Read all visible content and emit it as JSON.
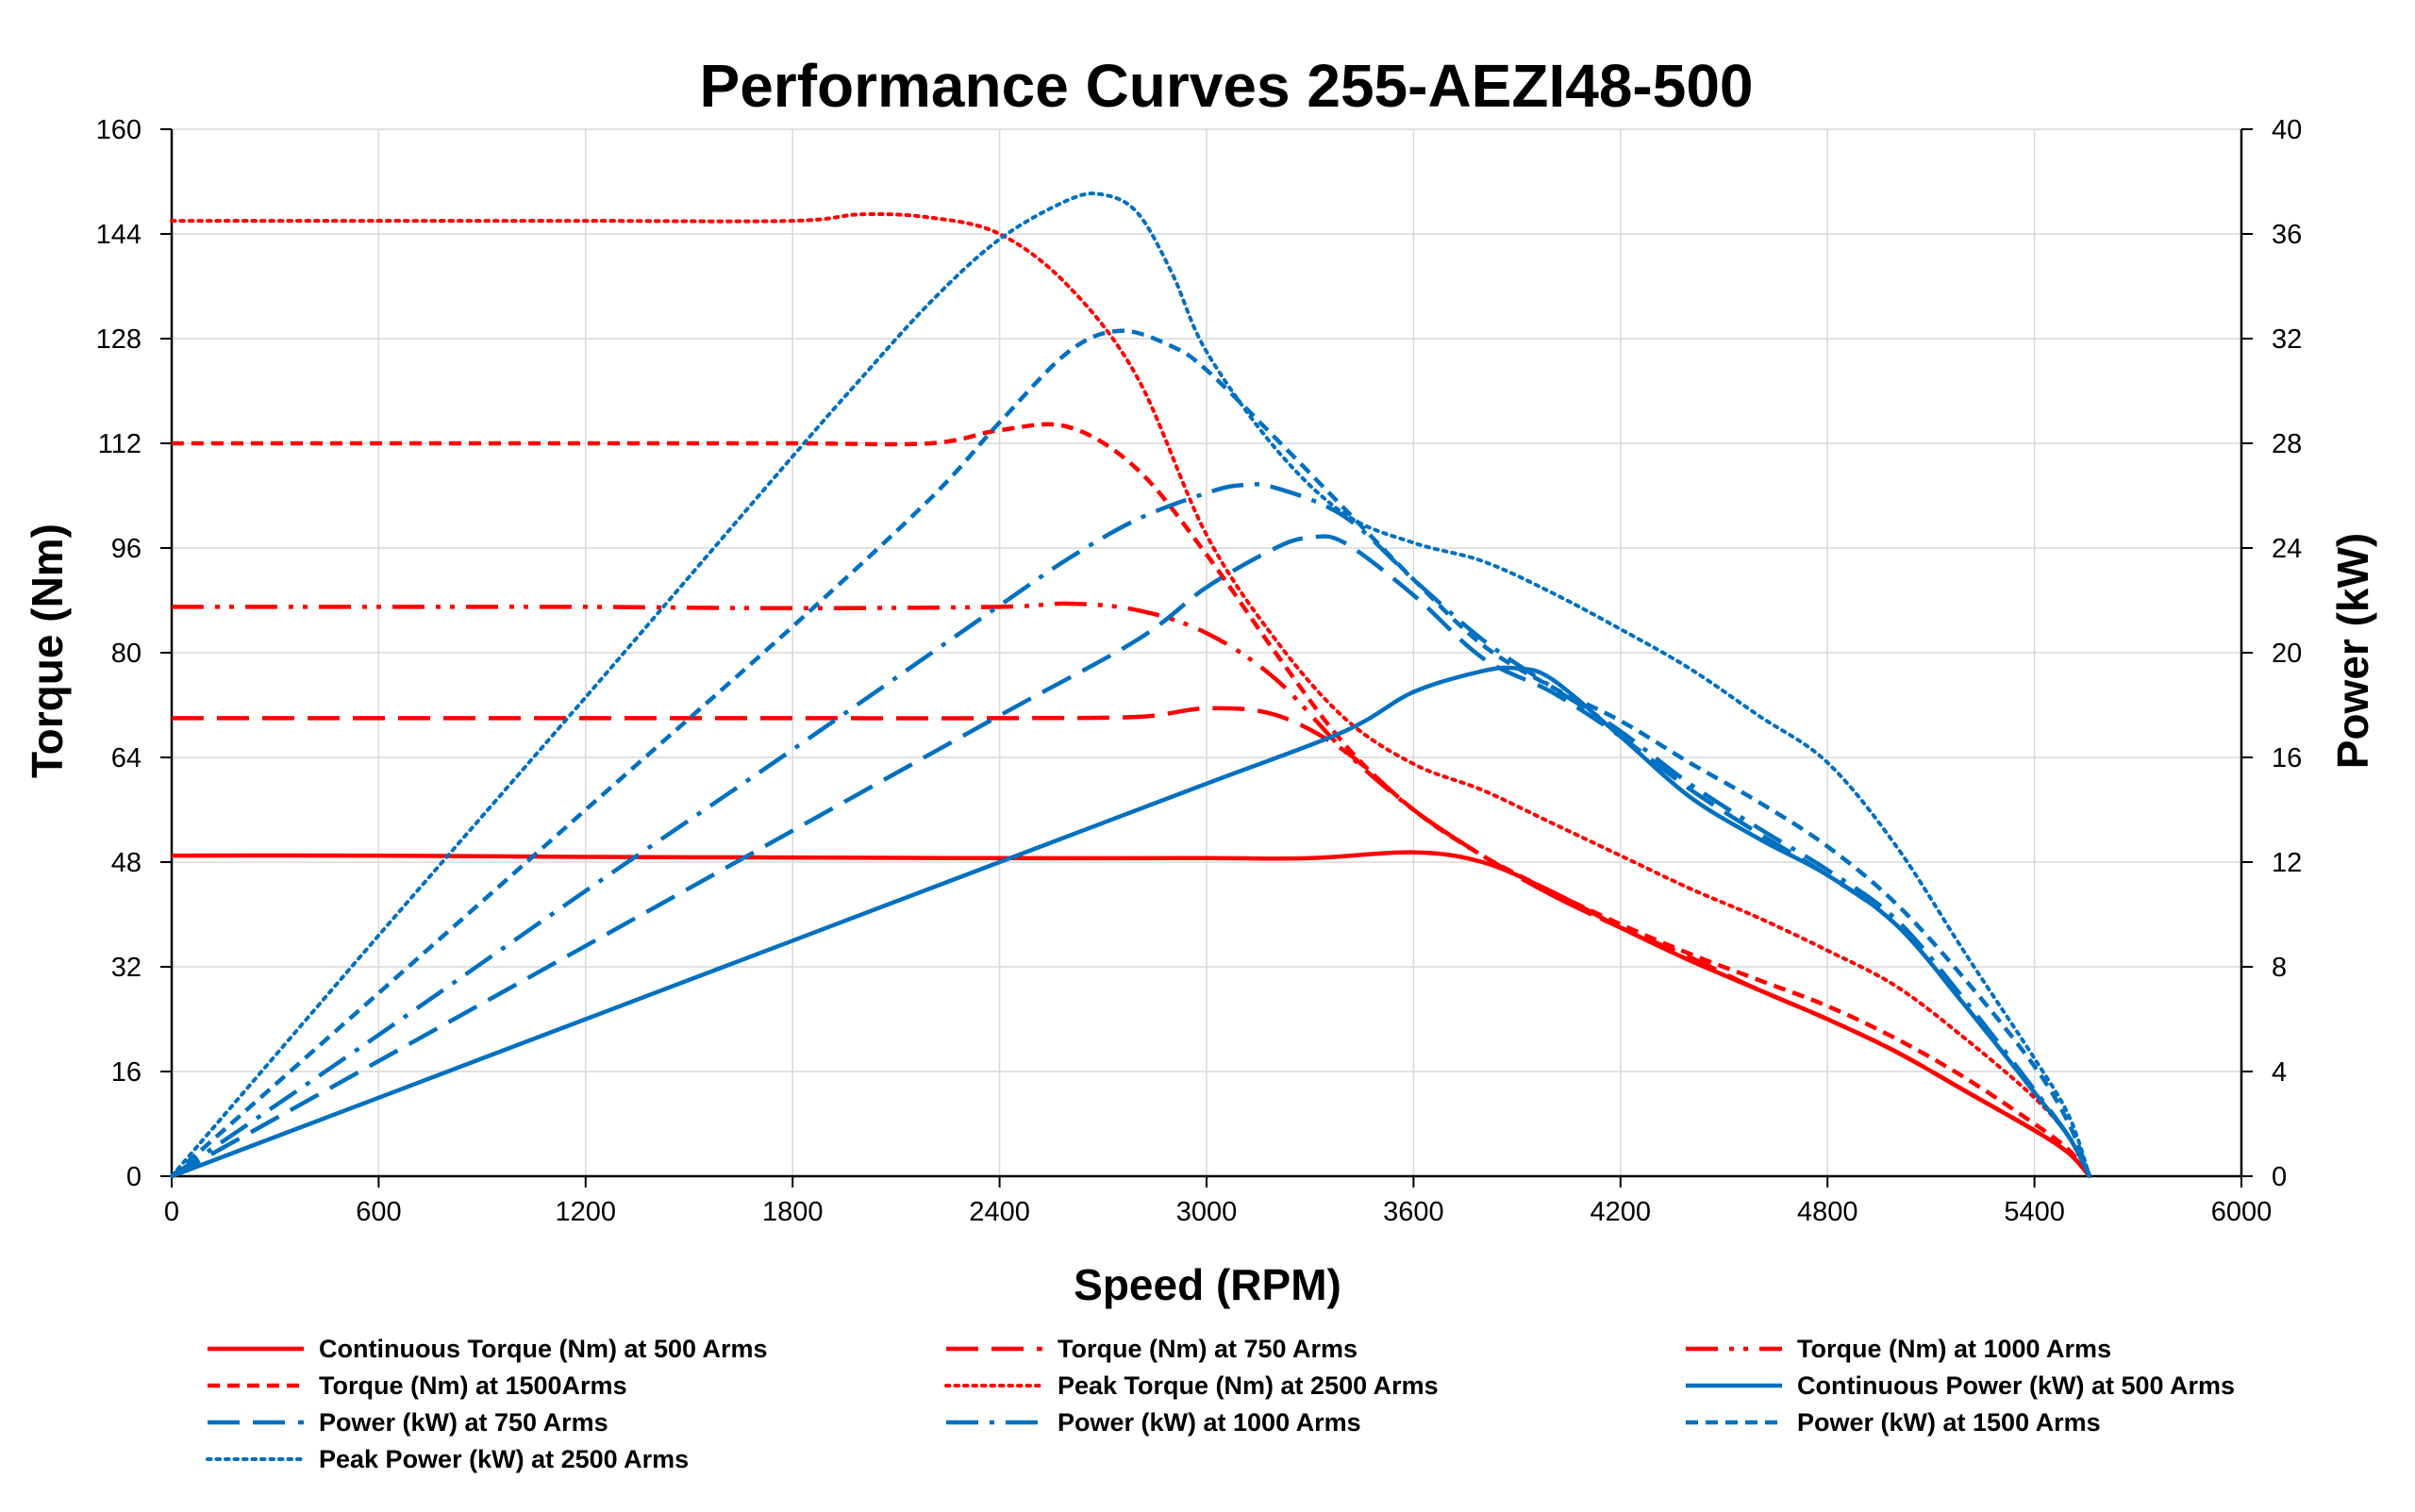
{
  "chart_data": {
    "type": "line",
    "title": "Performance Curves 255-AEZI48-500",
    "xlabel": "Speed (RPM)",
    "ylabel": "Torque (Nm)",
    "y2label": "Power (kW)",
    "xlim": [
      0,
      6000
    ],
    "ylim": [
      0,
      160
    ],
    "y2lim": [
      0,
      40
    ],
    "x_ticks": [
      0,
      600,
      1200,
      1800,
      2400,
      3000,
      3600,
      4200,
      4800,
      5400,
      6000
    ],
    "y_ticks": [
      0,
      16,
      32,
      48,
      64,
      80,
      96,
      112,
      128,
      144,
      160
    ],
    "y2_ticks": [
      0,
      4,
      8,
      12,
      16,
      20,
      24,
      28,
      32,
      36,
      40
    ],
    "grid": true,
    "legend_position": "bottom",
    "colors": {
      "torque": "#ff0000",
      "power": "#0070c0"
    },
    "series": [
      {
        "name": "Continuous Torque (Nm) at 500 Arms",
        "axis": "left",
        "color": "#ff0000",
        "dash": "solid",
        "x": [
          0,
          600,
          1200,
          1800,
          2400,
          3000,
          3300,
          3600,
          3800,
          4000,
          4200,
          4400,
          4600,
          4800,
          5000,
          5200,
          5400,
          5500,
          5560
        ],
        "y": [
          49,
          49,
          48.8,
          48.7,
          48.6,
          48.6,
          48.6,
          49.5,
          48,
          43.5,
          38,
          33,
          28.5,
          24,
          19,
          13,
          7,
          3.5,
          0
        ]
      },
      {
        "name": "Torque (Nm) at 750 Arms",
        "axis": "left",
        "color": "#ff0000",
        "dash": "longdash",
        "x": [
          0,
          600,
          1200,
          1800,
          2400,
          2800,
          3000,
          3200,
          3400,
          3600,
          3800,
          4000,
          4200,
          4400,
          4600,
          4800,
          5000,
          5200,
          5400,
          5500,
          5560
        ],
        "y": [
          70,
          70,
          70,
          70,
          70,
          70.2,
          71.5,
          70.5,
          65,
          56,
          49,
          43,
          38,
          33.5,
          28.5,
          24,
          19,
          13,
          7,
          3.5,
          0
        ]
      },
      {
        "name": "Torque (Nm) at 1000 Arms",
        "axis": "left",
        "color": "#ff0000",
        "dash": "dashdotdot",
        "x": [
          0,
          600,
          1200,
          1800,
          2400,
          2600,
          2800,
          3000,
          3200,
          3400,
          3600,
          3800,
          4000,
          4200,
          4400,
          4600,
          4800,
          5000,
          5200,
          5400,
          5500,
          5560
        ],
        "y": [
          87,
          87,
          87,
          86.8,
          87,
          87.5,
          86.5,
          83,
          76,
          65,
          56,
          49,
          43,
          38,
          33,
          28.5,
          24,
          19,
          13,
          7,
          3.5,
          0
        ]
      },
      {
        "name": "Torque (Nm) at 1500Arms",
        "axis": "left",
        "color": "#ff0000",
        "dash": "shortdash",
        "x": [
          0,
          600,
          1200,
          1800,
          2200,
          2400,
          2600,
          2800,
          3000,
          3200,
          3400,
          3600,
          3800,
          4000,
          4200,
          4400,
          4600,
          4800,
          5000,
          5200,
          5400,
          5500,
          5560
        ],
        "y": [
          112,
          112,
          112,
          112,
          112,
          114,
          114.5,
          108,
          95,
          80,
          66,
          56,
          49,
          43.5,
          38.5,
          34,
          30,
          26,
          21,
          15,
          8,
          4,
          0
        ]
      },
      {
        "name": "Peak Torque (Nm) at 2500  Arms",
        "axis": "left",
        "color": "#ff0000",
        "dash": "dotted",
        "x": [
          0,
          600,
          1200,
          1800,
          2000,
          2200,
          2400,
          2600,
          2800,
          3000,
          3200,
          3400,
          3600,
          3800,
          4000,
          4200,
          4400,
          4600,
          4800,
          5000,
          5200,
          5400,
          5500,
          5560
        ],
        "y": [
          146,
          146,
          146,
          146,
          147,
          146.5,
          144,
          136,
          122,
          98,
          82,
          70,
          63,
          59,
          54,
          49,
          44,
          39.5,
          34.5,
          29,
          21,
          12,
          6,
          0
        ]
      },
      {
        "name": "Continuous Power (kW) at 500 Arms",
        "axis": "right",
        "color": "#0070c0",
        "dash": "solid",
        "x": [
          0,
          600,
          1200,
          1800,
          2400,
          3000,
          3400,
          3600,
          3800,
          3900,
          4000,
          4200,
          4400,
          4600,
          4800,
          5000,
          5200,
          5400,
          5500,
          5560
        ],
        "y": [
          0,
          3,
          6,
          9,
          12,
          15,
          17,
          18.5,
          19.3,
          19.4,
          19,
          16.8,
          14.5,
          12.9,
          11.5,
          9.6,
          6.5,
          3.2,
          1.5,
          0
        ]
      },
      {
        "name": "Power (kW) at 750 Arms",
        "axis": "right",
        "color": "#0070c0",
        "dash": "longdash",
        "x": [
          0,
          600,
          1200,
          1800,
          2400,
          2800,
          3000,
          3200,
          3300,
          3400,
          3600,
          3800,
          4000,
          4200,
          4400,
          4600,
          4800,
          5000,
          5200,
          5400,
          5500,
          5560
        ],
        "y": [
          0,
          4.4,
          8.8,
          13.2,
          17.6,
          20.5,
          22.5,
          24,
          24.4,
          24.2,
          22.2,
          19.8,
          18.5,
          16.8,
          14.8,
          13.1,
          11.5,
          9.6,
          6.5,
          3.2,
          1.5,
          0
        ]
      },
      {
        "name": "Power (kW) at 1000 Arms",
        "axis": "right",
        "color": "#0070c0",
        "dash": "dashdot",
        "x": [
          0,
          600,
          1200,
          1800,
          2400,
          2600,
          2800,
          3000,
          3100,
          3200,
          3400,
          3600,
          3800,
          4000,
          4200,
          4400,
          4600,
          4800,
          5000,
          5200,
          5400,
          5500,
          5560
        ],
        "y": [
          0,
          5.4,
          10.9,
          16.3,
          21.8,
          23.6,
          25.1,
          26.1,
          26.4,
          26.3,
          25.2,
          22.8,
          20.5,
          18.7,
          17,
          15,
          13.3,
          11.7,
          9.8,
          6.7,
          3.3,
          1.5,
          0
        ]
      },
      {
        "name": "Power (kW) at 1500 Arms",
        "axis": "right",
        "color": "#0070c0",
        "dash": "shortdash",
        "x": [
          0,
          600,
          1200,
          1800,
          2200,
          2400,
          2600,
          2750,
          2900,
          3000,
          3200,
          3400,
          3600,
          3800,
          4000,
          4200,
          4400,
          4600,
          4800,
          5000,
          5200,
          5400,
          5500,
          5560
        ],
        "y": [
          0,
          7,
          14,
          21,
          25.9,
          28.8,
          31.5,
          32.3,
          31.7,
          30.8,
          28.2,
          25.5,
          22.8,
          20.3,
          18.7,
          17.4,
          15.8,
          14.3,
          12.6,
          10.4,
          7.5,
          4.2,
          2,
          0
        ]
      },
      {
        "name": "Peak Power (kW) at 2500 Arms",
        "axis": "right",
        "color": "#0070c0",
        "dash": "dotted",
        "x": [
          0,
          600,
          1200,
          1800,
          2000,
          2200,
          2400,
          2600,
          2700,
          2800,
          2900,
          3000,
          3200,
          3400,
          3600,
          3800,
          4000,
          4200,
          4400,
          4600,
          4800,
          5000,
          5200,
          5400,
          5500,
          5560
        ],
        "y": [
          0,
          9.2,
          18.3,
          27.5,
          30.5,
          33.4,
          35.8,
          37.3,
          37.5,
          36.8,
          34.5,
          31.5,
          27.8,
          25.3,
          24.2,
          23.5,
          22.3,
          20.9,
          19.4,
          17.6,
          15.8,
          12.6,
          8.5,
          4.5,
          2.3,
          0
        ]
      }
    ]
  }
}
